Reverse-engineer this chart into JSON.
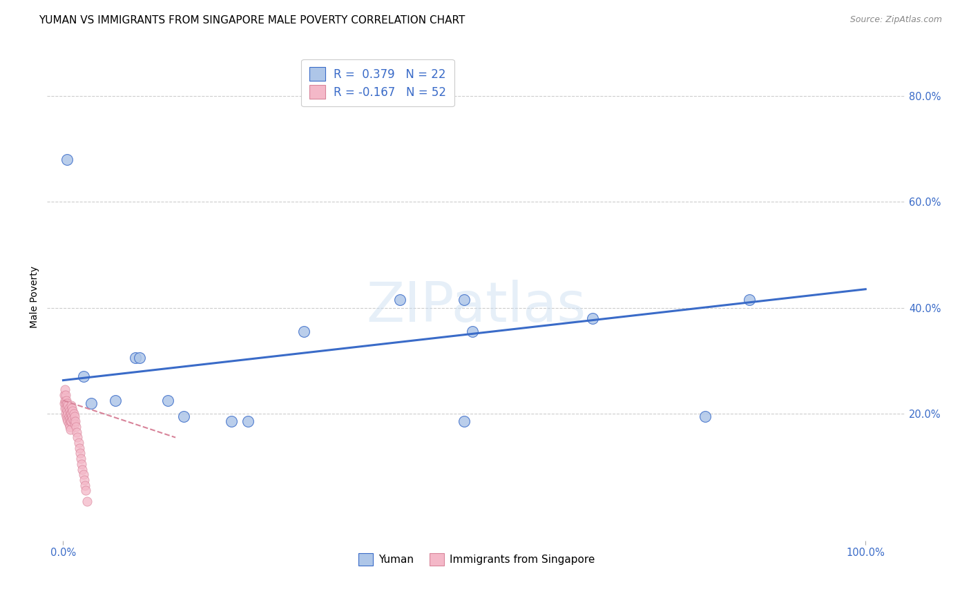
{
  "title": "YUMAN VS IMMIGRANTS FROM SINGAPORE MALE POVERTY CORRELATION CHART",
  "source": "Source: ZipAtlas.com",
  "ylabel": "Male Poverty",
  "ytick_labels": [
    "20.0%",
    "40.0%",
    "60.0%",
    "80.0%"
  ],
  "ytick_values": [
    0.2,
    0.4,
    0.6,
    0.8
  ],
  "xlim": [
    -0.02,
    1.05
  ],
  "ylim": [
    -0.04,
    0.88
  ],
  "blue_scatter_x": [
    0.005,
    0.025,
    0.09,
    0.095,
    0.13,
    0.15,
    0.21,
    0.3,
    0.42,
    0.5,
    0.51,
    0.66,
    0.8,
    0.855,
    0.035,
    0.065,
    0.23,
    0.5
  ],
  "blue_scatter_y": [
    0.68,
    0.27,
    0.305,
    0.305,
    0.225,
    0.195,
    0.185,
    0.355,
    0.415,
    0.415,
    0.355,
    0.38,
    0.195,
    0.415,
    0.22,
    0.225,
    0.185,
    0.185
  ],
  "pink_scatter_x": [
    0.001,
    0.001,
    0.002,
    0.002,
    0.002,
    0.003,
    0.003,
    0.003,
    0.004,
    0.004,
    0.004,
    0.005,
    0.005,
    0.005,
    0.006,
    0.006,
    0.006,
    0.007,
    0.007,
    0.007,
    0.008,
    0.008,
    0.008,
    0.009,
    0.009,
    0.009,
    0.01,
    0.01,
    0.01,
    0.011,
    0.011,
    0.012,
    0.012,
    0.013,
    0.013,
    0.014,
    0.014,
    0.015,
    0.016,
    0.017,
    0.018,
    0.019,
    0.02,
    0.021,
    0.022,
    0.023,
    0.024,
    0.025,
    0.026,
    0.027,
    0.028,
    0.03
  ],
  "pink_scatter_y": [
    0.235,
    0.22,
    0.245,
    0.225,
    0.21,
    0.235,
    0.22,
    0.2,
    0.225,
    0.21,
    0.195,
    0.22,
    0.205,
    0.19,
    0.215,
    0.2,
    0.185,
    0.21,
    0.195,
    0.18,
    0.205,
    0.19,
    0.175,
    0.2,
    0.185,
    0.17,
    0.215,
    0.2,
    0.185,
    0.21,
    0.195,
    0.205,
    0.19,
    0.2,
    0.185,
    0.195,
    0.18,
    0.185,
    0.175,
    0.165,
    0.155,
    0.145,
    0.135,
    0.125,
    0.115,
    0.105,
    0.095,
    0.085,
    0.075,
    0.065,
    0.055,
    0.035
  ],
  "blue_line_x": [
    0.0,
    1.0
  ],
  "blue_line_y": [
    0.263,
    0.435
  ],
  "pink_line_x": [
    0.0,
    0.14
  ],
  "pink_line_y": [
    0.225,
    0.155
  ],
  "blue_color": "#AEC6E8",
  "pink_color": "#F4B8C8",
  "blue_line_color": "#3A6BC8",
  "pink_line_color": "#D8849A",
  "legend_label1": "Yuman",
  "legend_label2": "Immigrants from Singapore",
  "watermark": "ZIPatlas",
  "title_fontsize": 11,
  "axis_label_fontsize": 10,
  "tick_fontsize": 10.5
}
